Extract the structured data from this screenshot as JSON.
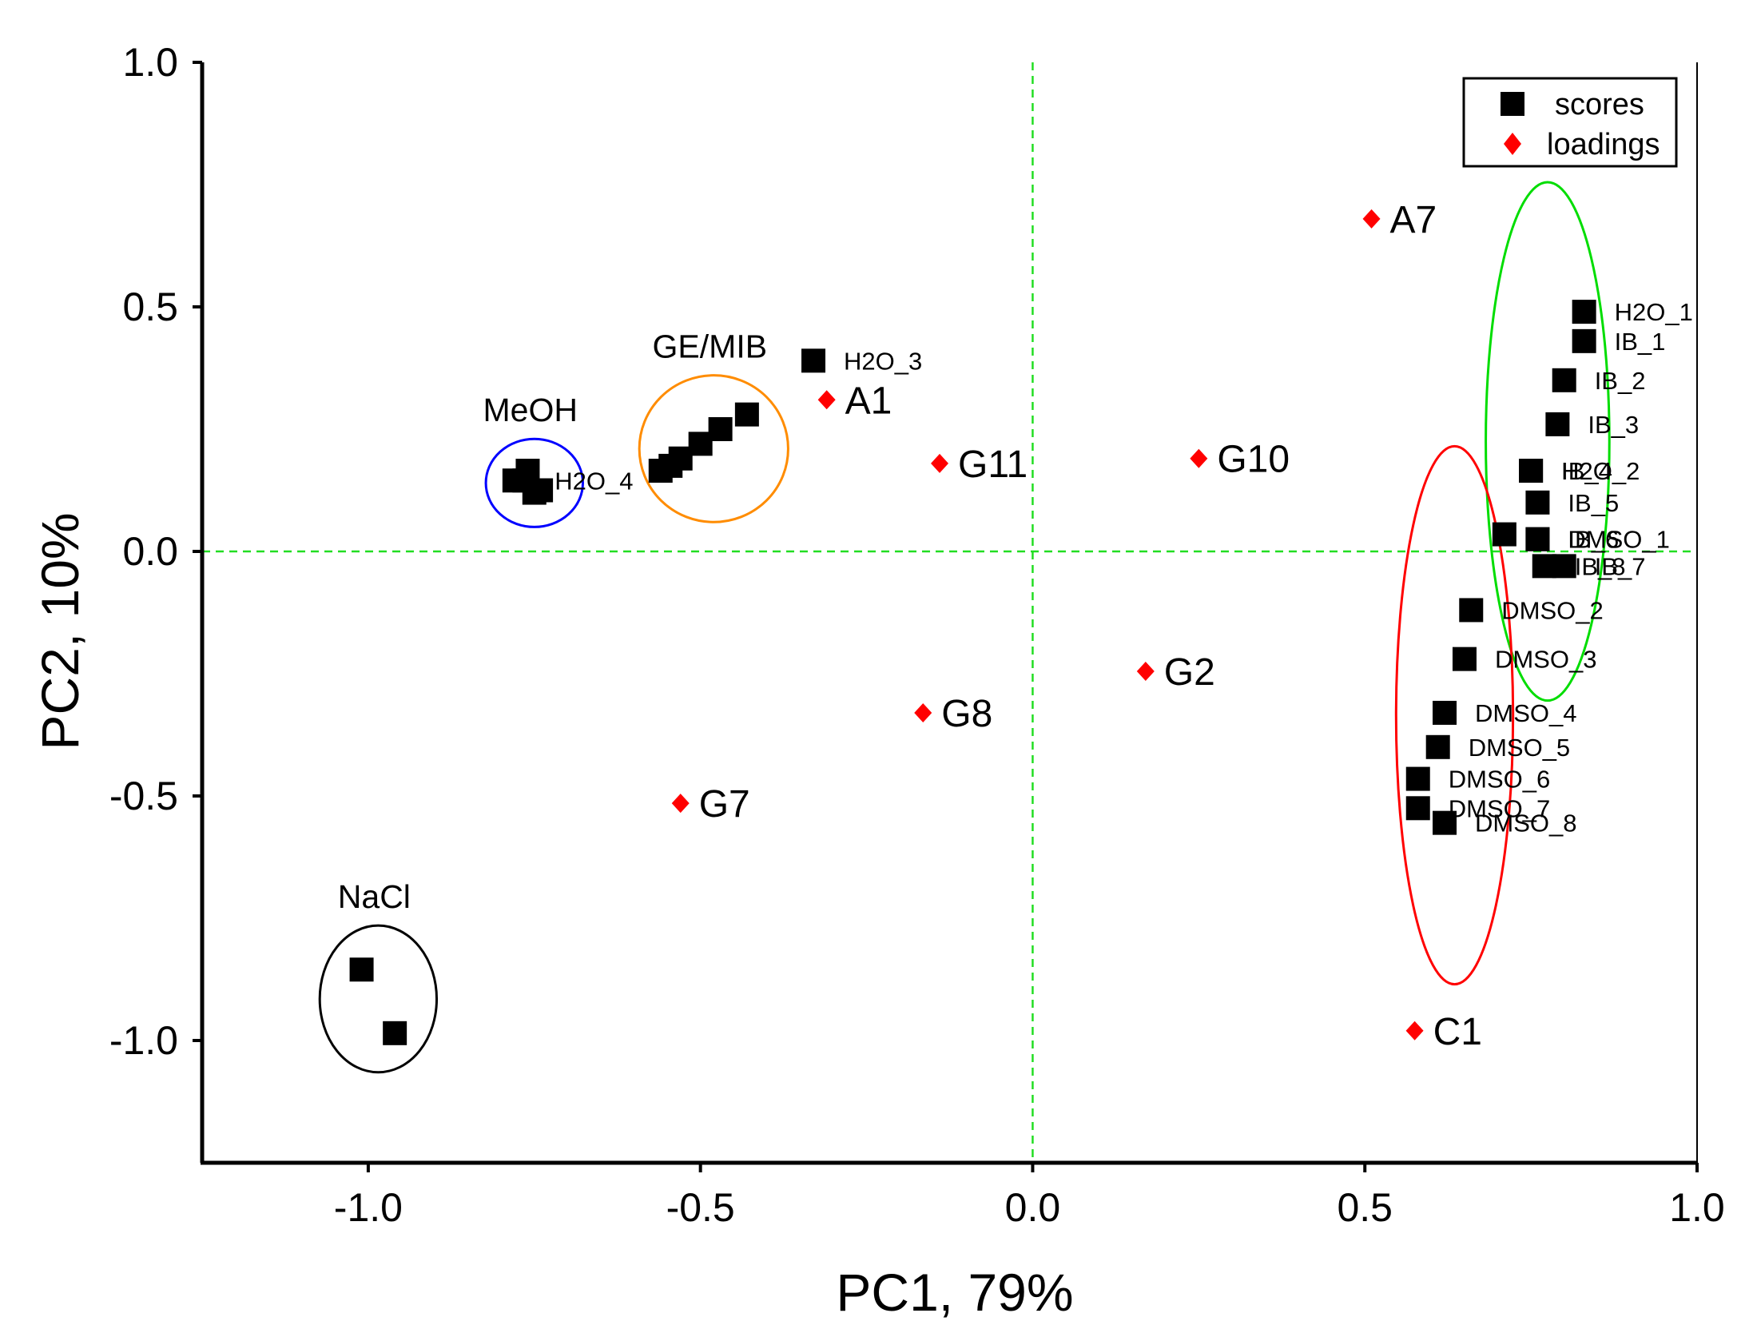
{
  "chart_data": {
    "type": "scatter",
    "title": "",
    "xlabel": "PC1, 79%",
    "ylabel": "PC2, 10%",
    "xlim": [
      -1.25,
      1.0
    ],
    "ylim": [
      -1.25,
      1.0
    ],
    "xticks": [
      -1.0,
      -0.5,
      0.0,
      0.5,
      1.0
    ],
    "yticks": [
      1.0,
      0.5,
      0.0,
      -0.5,
      -1.0
    ],
    "xtick_labels": [
      "-1.0",
      "-0.5",
      "0.0",
      "0.5",
      "1.0"
    ],
    "ytick_labels": [
      "1.0",
      "0.5",
      "0.0",
      "-0.5",
      "-1.0"
    ],
    "reference_lines": {
      "x": 0.0,
      "y": 0.0,
      "color": "#22dd22"
    },
    "legend": {
      "position": "top-right",
      "entries": [
        {
          "label": "scores",
          "marker": "square",
          "color": "#000000"
        },
        {
          "label": "loadings",
          "marker": "diamond",
          "color": "#ff0000"
        }
      ]
    },
    "series": [
      {
        "name": "scores",
        "marker": "square",
        "color": "#000000",
        "points": [
          {
            "x": 0.83,
            "y": 0.49,
            "label": "H2O_1"
          },
          {
            "x": 0.83,
            "y": 0.43,
            "label": "IB_1"
          },
          {
            "x": 0.8,
            "y": 0.35,
            "label": "IB_2"
          },
          {
            "x": 0.79,
            "y": 0.26,
            "label": "IB_3"
          },
          {
            "x": 0.75,
            "y": 0.165,
            "label": "H2O_2"
          },
          {
            "x": 0.75,
            "y": 0.165,
            "label": "IB_4"
          },
          {
            "x": 0.76,
            "y": 0.1,
            "label": "IB_5"
          },
          {
            "x": 0.71,
            "y": 0.035,
            "label": ""
          },
          {
            "x": 0.76,
            "y": 0.025,
            "label": "DMSO_1"
          },
          {
            "x": 0.76,
            "y": 0.025,
            "label": "IB_6"
          },
          {
            "x": 0.8,
            "y": -0.03,
            "label": "IB_7"
          },
          {
            "x": 0.77,
            "y": -0.03,
            "label": "IB_8"
          },
          {
            "x": 0.66,
            "y": -0.12,
            "label": "DMSO_2"
          },
          {
            "x": 0.65,
            "y": -0.22,
            "label": "DMSO_3"
          },
          {
            "x": 0.62,
            "y": -0.33,
            "label": "DMSO_4"
          },
          {
            "x": 0.61,
            "y": -0.4,
            "label": "DMSO_5"
          },
          {
            "x": 0.58,
            "y": -0.465,
            "label": "DMSO_6"
          },
          {
            "x": 0.58,
            "y": -0.525,
            "label": "DMSO_7"
          },
          {
            "x": 0.62,
            "y": -0.555,
            "label": "DMSO_8"
          },
          {
            "x": -0.33,
            "y": 0.39,
            "label": "H2O_3"
          },
          {
            "x": -0.43,
            "y": 0.28,
            "label": ""
          },
          {
            "x": -0.47,
            "y": 0.25,
            "label": ""
          },
          {
            "x": -0.5,
            "y": 0.22,
            "label": ""
          },
          {
            "x": -0.53,
            "y": 0.19,
            "label": ""
          },
          {
            "x": -0.545,
            "y": 0.175,
            "label": ""
          },
          {
            "x": -0.56,
            "y": 0.165,
            "label": ""
          },
          {
            "x": -0.76,
            "y": 0.165,
            "label": ""
          },
          {
            "x": -0.765,
            "y": 0.145,
            "label": "H2O_4"
          },
          {
            "x": -0.78,
            "y": 0.145,
            "label": ""
          },
          {
            "x": -0.75,
            "y": 0.12,
            "label": ""
          },
          {
            "x": -0.74,
            "y": 0.125,
            "label": ""
          },
          {
            "x": -1.01,
            "y": -0.855,
            "label": ""
          },
          {
            "x": -0.96,
            "y": -0.985,
            "label": ""
          }
        ]
      },
      {
        "name": "loadings",
        "marker": "diamond",
        "color": "#ff0000",
        "points": [
          {
            "x": 0.51,
            "y": 0.68,
            "label": "A7"
          },
          {
            "x": -0.31,
            "y": 0.31,
            "label": "A1"
          },
          {
            "x": -0.14,
            "y": 0.18,
            "label": "G11"
          },
          {
            "x": 0.25,
            "y": 0.19,
            "label": "G10"
          },
          {
            "x": 0.17,
            "y": -0.245,
            "label": "G2"
          },
          {
            "x": -0.165,
            "y": -0.33,
            "label": "G8"
          },
          {
            "x": -0.53,
            "y": -0.515,
            "label": "G7"
          },
          {
            "x": 0.575,
            "y": -0.98,
            "label": "C1"
          }
        ]
      }
    ],
    "annotations": [
      {
        "text": "MeOH",
        "group": "methanol cluster",
        "ellipse_color": "#0000ff",
        "center": [
          -0.75,
          0.14
        ],
        "radii": [
          0.073,
          0.09
        ]
      },
      {
        "text": "GE/MIB",
        "group": "GE/MIB cluster",
        "ellipse_color": "#ff8c00",
        "center": [
          -0.48,
          0.21
        ],
        "radii": [
          0.112,
          0.15
        ]
      },
      {
        "text": "NaCl",
        "group": "NaCl cluster",
        "ellipse_color": "#000000",
        "center": [
          -0.985,
          -0.915
        ],
        "radii": [
          0.088,
          0.15
        ]
      },
      {
        "text": "",
        "group": "IB cluster",
        "ellipse_color": "#00dd00",
        "center": [
          0.775,
          0.225
        ],
        "radii": [
          0.093,
          0.53
        ]
      },
      {
        "text": "",
        "group": "DMSO cluster",
        "ellipse_color": "#ff0000",
        "center": [
          0.635,
          -0.335
        ],
        "radii": [
          0.088,
          0.55
        ]
      }
    ]
  }
}
